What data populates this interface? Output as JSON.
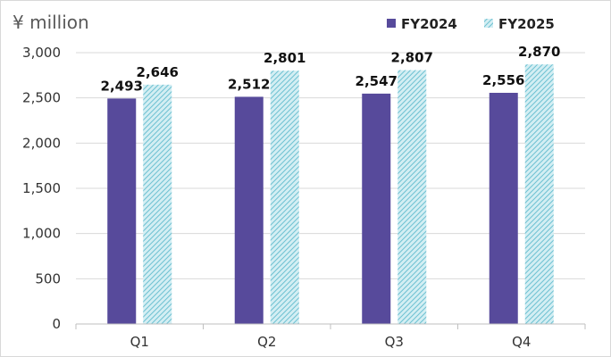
{
  "chart_data": {
    "type": "bar",
    "ylabel": "¥ million",
    "categories": [
      "Q1",
      "Q2",
      "Q3",
      "Q4"
    ],
    "series": [
      {
        "name": "FY2024",
        "values": [
          2493,
          2512,
          2547,
          2556
        ],
        "color": "#574a9b"
      },
      {
        "name": "FY2025",
        "values": [
          2646,
          2801,
          2807,
          2870
        ],
        "color": "#8fd0dc"
      }
    ],
    "data_labels": [
      [
        "2,493",
        "2,512",
        "2,547",
        "2,556"
      ],
      [
        "2,646",
        "2,801",
        "2,807",
        "2,870"
      ]
    ],
    "ylim": [
      0,
      3000
    ],
    "yticks": [
      0,
      500,
      1000,
      1500,
      2000,
      2500,
      3000
    ],
    "ytick_labels": [
      "0",
      "500",
      "1,000",
      "1,500",
      "2,000",
      "2,500",
      "3,000"
    ],
    "grid": true,
    "legend_position": "top-right",
    "gridline_color": "#d9d9d9"
  }
}
